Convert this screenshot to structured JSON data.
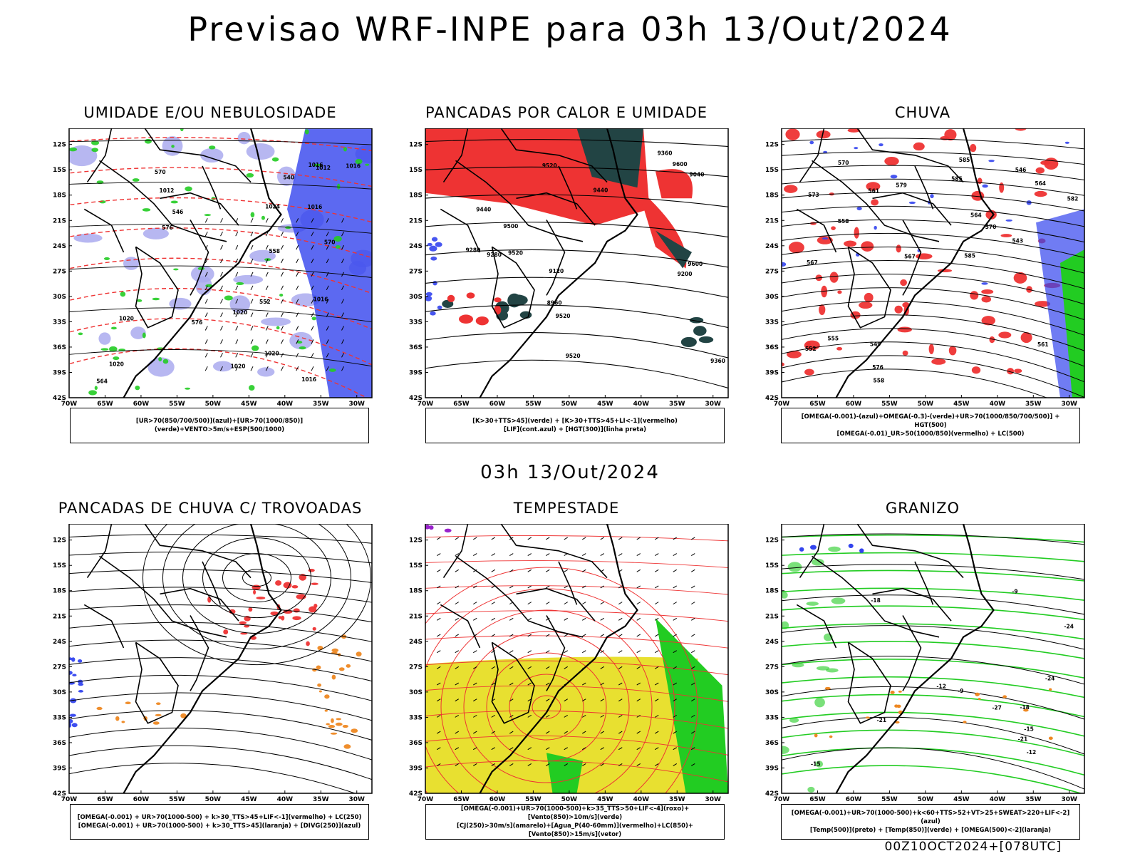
{
  "title": "Previsao WRF-INPE  para 03h 13/Out/2024",
  "mid_title": "03h 13/Out/2024",
  "footer": "00Z10OCT2024+[078UTC]",
  "axes": {
    "lat_labels": [
      "12S",
      "15S",
      "18S",
      "21S",
      "24S",
      "27S",
      "30S",
      "33S",
      "36S",
      "39S",
      "42S"
    ],
    "lon_labels": [
      "70W",
      "65W",
      "60W",
      "55W",
      "50W",
      "45W",
      "40W",
      "35W",
      "30W"
    ]
  },
  "colors": {
    "blue": "#3344ee",
    "light_blue": "#aaaaee",
    "green": "#22cc22",
    "red": "#ee3333",
    "dark_teal": "#224444",
    "yellow": "#e8e030",
    "orange": "#ee8822",
    "purple": "#9922cc",
    "contour": "#000000"
  },
  "panels": [
    {
      "title": "UMIDADE E/OU NEBULOSIDADE",
      "legend": [
        "[UR>70(850/700/500)](azul)+[UR>70(1000/850)](verde)+VENTO>5m/s+ESP(500/1000)"
      ],
      "labels": [
        "1012",
        "1012",
        "1016",
        "1016",
        "1016",
        "1020",
        "1016",
        "1016",
        "1020",
        "1020",
        "1020",
        "1024",
        "1020",
        "576",
        "570",
        "564",
        "558",
        "552",
        "546",
        "540",
        "576",
        "570"
      ]
    },
    {
      "title": "PANCADAS POR CALOR E UMIDADE",
      "legend": [
        "[K>30+TTS>45](verde) + [K>30+TTS>45+LI<-1](vermelho)",
        "[LIF](cont.azul) + [HGT(300)](linha preta)"
      ],
      "labels": [
        "9520",
        "9500",
        "9520",
        "9440",
        "9600",
        "9520",
        "9440",
        "9360",
        "9280",
        "9200",
        "9120",
        "9040",
        "8960",
        "9360",
        "9280",
        "9520",
        "9600"
      ]
    },
    {
      "title": "CHUVA",
      "legend": [
        "[OMEGA(-0.001)-(azul)+OMEGA(-0.3)-(verde)+UR>70(1000/850/700/500)] + HGT(500)",
        "[OMEGA(-0.01)_UR>50(1000/850)(vermelho) + LC(500)"
      ],
      "labels": [
        "585",
        "585",
        "582",
        "579",
        "576",
        "573",
        "570",
        "567",
        "564",
        "561",
        "558",
        "555",
        "552",
        "549",
        "546",
        "543",
        "570",
        "567",
        "564",
        "561",
        "558",
        "585"
      ]
    },
    {
      "title": "PANCADAS DE CHUVA C/ TROVOADAS",
      "legend": [
        "[OMEGA(-0.001) + UR>70(1000-500) + k>30_TTS>45+LIF<-1](vermelho) + LC(250)",
        "[OMEGA(-0.001) + UR>70(1000-500) + k>30_TTS>45](laranja) + [DIVG(250)](azul)"
      ],
      "labels": []
    },
    {
      "title": "TEMPESTADE",
      "legend": [
        "[OMEGA(-0.001)+UR>70(1000-500)+k>35_TTS>50+LIF<-4](roxo)+[Vento(850)>10m/s](verde)",
        "[CJ(250)>30m/s](amarelo)+[Agua_P(40-60mm)](vermelho)+LC(850)+[Vento(850)>15m/s](vetor)"
      ],
      "labels": []
    },
    {
      "title": "GRANIZO",
      "legend": [
        "[OMEGA(-0.001)+UR>70(1000-500)+k<60+TTS>52+VT>25+SWEAT>220+LIF<-2](azul)",
        "[Temp(500)](preto) + [Temp(850)](verde) + [OMEGA(500)<-2](laranja)"
      ],
      "labels": [
        "-12",
        "-15",
        "-18",
        "-21",
        "-24",
        "-27",
        "-12",
        "-9",
        "-18",
        "-15",
        "-21",
        "-24",
        "-9"
      ]
    }
  ]
}
